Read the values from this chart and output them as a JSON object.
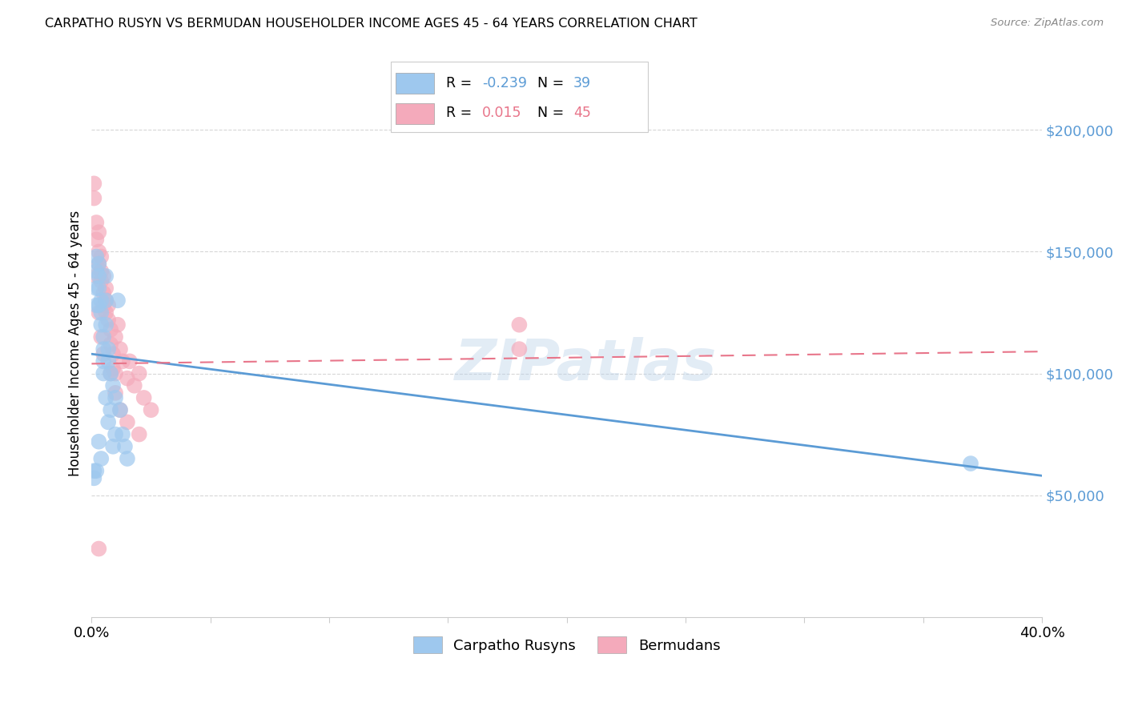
{
  "title": "CARPATHO RUSYN VS BERMUDAN HOUSEHOLDER INCOME AGES 45 - 64 YEARS CORRELATION CHART",
  "source": "Source: ZipAtlas.com",
  "ylabel": "Householder Income Ages 45 - 64 years",
  "xlim": [
    0.0,
    0.4
  ],
  "ylim": [
    0,
    225000
  ],
  "ytick_vals": [
    50000,
    100000,
    150000,
    200000
  ],
  "ytick_labels": [
    "$50,000",
    "$100,000",
    "$150,000",
    "$200,000"
  ],
  "xtick_vals": [
    0.0,
    0.05,
    0.1,
    0.15,
    0.2,
    0.25,
    0.3,
    0.35,
    0.4
  ],
  "xtick_labels": [
    "0.0%",
    "",
    "",
    "",
    "",
    "",
    "",
    "",
    "40.0%"
  ],
  "blue_color": "#9EC8EE",
  "pink_color": "#F4AABB",
  "blue_line_color": "#5B9BD5",
  "pink_line_color": "#E8758A",
  "legend_R_blue": "-0.239",
  "legend_N_blue": "39",
  "legend_R_pink": "0.015",
  "legend_N_pink": "45",
  "blue_line_x0": 0.0,
  "blue_line_y0": 108000,
  "blue_line_x1": 0.4,
  "blue_line_y1": 58000,
  "pink_line_x0": 0.0,
  "pink_line_y0": 104000,
  "pink_line_x1": 0.4,
  "pink_line_y1": 109000,
  "blue_scatter_x": [
    0.001,
    0.001,
    0.002,
    0.002,
    0.002,
    0.002,
    0.003,
    0.003,
    0.003,
    0.003,
    0.003,
    0.004,
    0.004,
    0.004,
    0.004,
    0.005,
    0.005,
    0.005,
    0.005,
    0.006,
    0.006,
    0.006,
    0.006,
    0.007,
    0.007,
    0.007,
    0.008,
    0.008,
    0.009,
    0.009,
    0.01,
    0.01,
    0.011,
    0.012,
    0.013,
    0.014,
    0.015,
    0.37,
    0.002
  ],
  "blue_scatter_y": [
    60000,
    57000,
    148000,
    142000,
    135000,
    128000,
    145000,
    140000,
    135000,
    128000,
    72000,
    130000,
    125000,
    120000,
    65000,
    115000,
    110000,
    105000,
    100000,
    140000,
    130000,
    120000,
    90000,
    110000,
    105000,
    80000,
    100000,
    85000,
    95000,
    70000,
    90000,
    75000,
    130000,
    85000,
    75000,
    70000,
    65000,
    63000,
    60000
  ],
  "pink_scatter_x": [
    0.001,
    0.001,
    0.002,
    0.002,
    0.003,
    0.003,
    0.003,
    0.004,
    0.004,
    0.004,
    0.005,
    0.005,
    0.005,
    0.006,
    0.006,
    0.006,
    0.007,
    0.007,
    0.008,
    0.008,
    0.009,
    0.009,
    0.01,
    0.01,
    0.011,
    0.012,
    0.013,
    0.015,
    0.016,
    0.018,
    0.02,
    0.022,
    0.025,
    0.18,
    0.002,
    0.003,
    0.004,
    0.005,
    0.008,
    0.01,
    0.012,
    0.015,
    0.02,
    0.18,
    0.003
  ],
  "pink_scatter_y": [
    178000,
    172000,
    162000,
    155000,
    158000,
    150000,
    145000,
    148000,
    142000,
    138000,
    140000,
    133000,
    128000,
    135000,
    130000,
    125000,
    128000,
    122000,
    118000,
    112000,
    108000,
    102000,
    115000,
    100000,
    120000,
    110000,
    105000,
    98000,
    105000,
    95000,
    100000,
    90000,
    85000,
    120000,
    140000,
    125000,
    115000,
    108000,
    100000,
    92000,
    85000,
    80000,
    75000,
    110000,
    28000
  ]
}
